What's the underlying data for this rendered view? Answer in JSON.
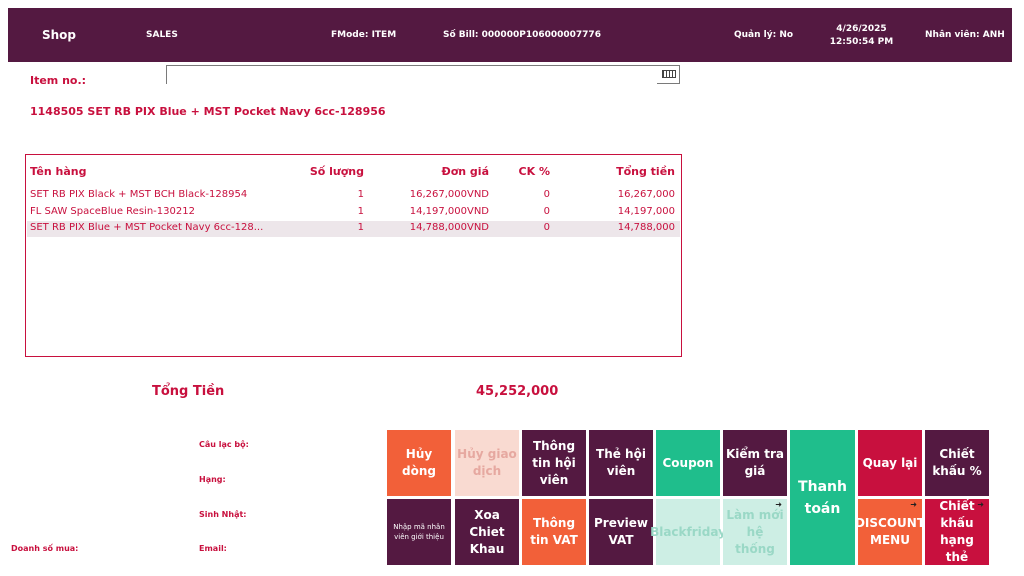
{
  "header": {
    "shop": "Shop",
    "mode": "SALES",
    "fmode": "FMode: ITEM",
    "bill": "Số Bill: 000000P106000007776",
    "manager": "Quản lý: No",
    "datetime": "4/26/2025 12:50:54 PM",
    "staff": "Nhân viên: ANH"
  },
  "item_entry": {
    "label": "Item no.:",
    "value": "",
    "keyboard_icon": "keyboard-icon"
  },
  "current_item": "1148505 SET RB PIX Blue + MST Pocket Navy 6cc-128956",
  "table": {
    "headers": {
      "name": "Tên hàng",
      "qty": "Số lượng",
      "price": "Đơn giá",
      "ck": "CK %",
      "total": "Tổng tiền"
    },
    "rows": [
      {
        "name": "SET RB PIX Black + MST BCH Black-128954",
        "qty": "1",
        "price": "16,267,000VND",
        "ck": "0",
        "total": "16,267,000"
      },
      {
        "name": "FL SAW SpaceBlue Resin-130212",
        "qty": "1",
        "price": "14,197,000VND",
        "ck": "0",
        "total": "14,197,000"
      },
      {
        "name": "SET RB PIX Blue + MST Pocket Navy 6cc-128...",
        "qty": "1",
        "price": "14,788,000VND",
        "ck": "0",
        "total": "14,788,000"
      }
    ]
  },
  "totals": {
    "label": "Tổng Tiền",
    "value": "45,252,000"
  },
  "member_info": {
    "club": "Câu lạc bộ:",
    "rank": "Hạng:",
    "birthday": "Sinh Nhật:",
    "email": "Email:",
    "purchases": "Doanh số mua:"
  },
  "buttons": {
    "cancel_line": "Hủy dòng",
    "cancel_transaction": "Hủy giao dịch",
    "member_info": "Thông tin hội viên",
    "member_card": "Thẻ hội viên",
    "coupon": "Coupon",
    "check_price": "Kiểm tra giá",
    "checkout": "Thanh toán",
    "back": "Quay lại",
    "discount_percent": "Chiết khấu %",
    "referral": "Nhập mã nhân viên giới thiệu",
    "remove_discount": "Xoa Chiet Khau",
    "vat_info": "Thông tin VAT",
    "preview_vat": "Preview VAT",
    "blackfriday": "Blackfriday",
    "refresh": "Làm mới hệ thống",
    "discount_menu": "DISCOUNT MENU",
    "card_discount": "Chiết khấu hạng thẻ"
  },
  "colors": {
    "plum": "#541941",
    "crimson": "#c8103e",
    "orange": "#f26039",
    "green": "#1fbe8c",
    "disabled_pink": "#f9dad1",
    "disabled_mint": "#cdeee4"
  }
}
